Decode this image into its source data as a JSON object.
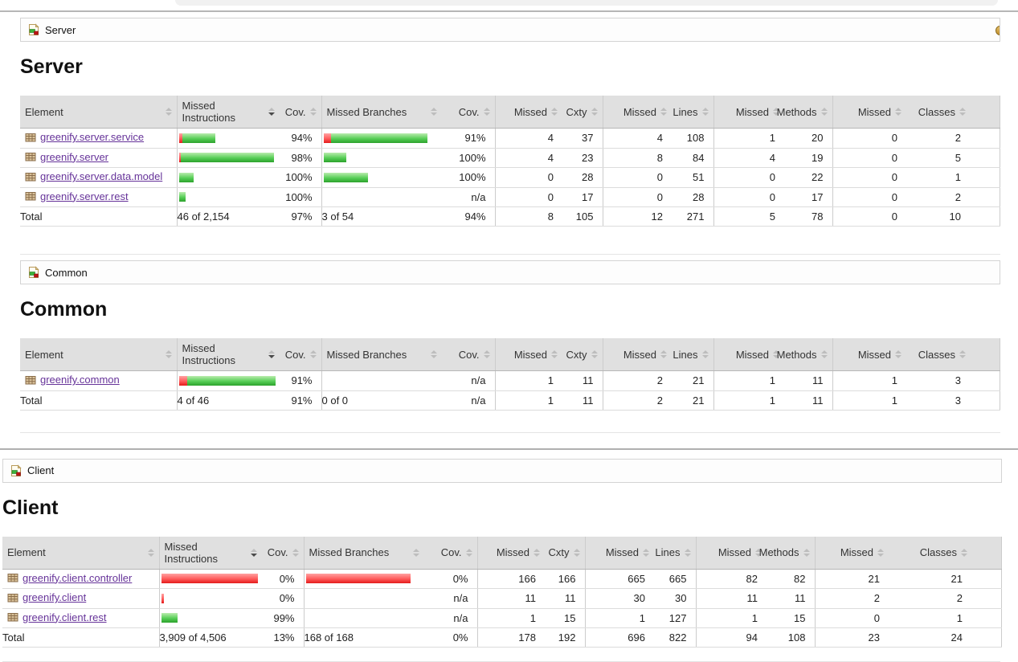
{
  "icons": {
    "crumb_icon": "coverage-group-icon",
    "package_icon": "java-package-icon",
    "session_icon": "session-coin-icon",
    "sort_icon": "sort-arrows-icon"
  },
  "colors": {
    "link": "#663399",
    "bar_red": "#e31b1b",
    "bar_green": "#2ca22c",
    "header_bg": "#e0e0e0"
  },
  "sections": [
    {
      "id": "server",
      "crumb_label": "Server",
      "heading": "Server",
      "sorted_col_index": 1,
      "headers": [
        "Element",
        "Missed Instructions",
        "Cov.",
        "Missed Branches",
        "Cov.",
        "Missed",
        "Cxty",
        "Missed",
        "Lines",
        "Missed",
        "Methods",
        "Missed",
        "Classes"
      ],
      "rows": [
        {
          "name": "greenify.server.service",
          "instr_bar": {
            "red": 4,
            "green": 41
          },
          "instr_cov": "94%",
          "branch_bar": {
            "red": 9,
            "green": 120
          },
          "branch_cov": "91%",
          "nums": [
            "4",
            "37",
            "4",
            "108",
            "1",
            "20",
            "0",
            "2"
          ]
        },
        {
          "name": "greenify.server",
          "instr_bar": {
            "red": 2,
            "green": 116
          },
          "instr_cov": "98%",
          "branch_bar": {
            "red": 0,
            "green": 28
          },
          "branch_cov": "100%",
          "nums": [
            "4",
            "23",
            "8",
            "84",
            "4",
            "19",
            "0",
            "5"
          ]
        },
        {
          "name": "greenify.server.data.model",
          "instr_bar": {
            "red": 0,
            "green": 18
          },
          "instr_cov": "100%",
          "branch_bar": {
            "red": 0,
            "green": 55
          },
          "branch_cov": "100%",
          "nums": [
            "0",
            "28",
            "0",
            "51",
            "0",
            "22",
            "0",
            "1"
          ]
        },
        {
          "name": "greenify.server.rest",
          "instr_bar": {
            "red": 0,
            "green": 8
          },
          "instr_cov": "100%",
          "branch_bar": {
            "red": 0,
            "green": 0
          },
          "branch_cov": "n/a",
          "nums": [
            "0",
            "17",
            "0",
            "28",
            "0",
            "17",
            "0",
            "2"
          ]
        }
      ],
      "total": {
        "label": "Total",
        "instr_text": "46 of 2,154",
        "instr_cov": "97%",
        "branch_text": "3 of 54",
        "branch_cov": "94%",
        "nums": [
          "8",
          "105",
          "12",
          "271",
          "5",
          "78",
          "0",
          "10"
        ]
      }
    },
    {
      "id": "common",
      "crumb_label": "Common",
      "heading": "Common",
      "sorted_col_index": 1,
      "headers": [
        "Element",
        "Missed Instructions",
        "Cov.",
        "Missed Branches",
        "Cov.",
        "Missed",
        "Cxty",
        "Missed",
        "Lines",
        "Missed",
        "Methods",
        "Missed",
        "Classes"
      ],
      "rows": [
        {
          "name": "greenify.common",
          "instr_bar": {
            "red": 10,
            "green": 110
          },
          "instr_cov": "91%",
          "branch_bar": {
            "red": 0,
            "green": 0
          },
          "branch_cov": "n/a",
          "nums": [
            "1",
            "11",
            "2",
            "21",
            "1",
            "11",
            "1",
            "3"
          ]
        }
      ],
      "total": {
        "label": "Total",
        "instr_text": "4 of 46",
        "instr_cov": "91%",
        "branch_text": "0 of 0",
        "branch_cov": "n/a",
        "nums": [
          "1",
          "11",
          "2",
          "21",
          "1",
          "11",
          "1",
          "3"
        ]
      }
    },
    {
      "id": "client",
      "crumb_label": "Client",
      "heading": "Client",
      "sorted_col_index": 1,
      "headers": [
        "Element",
        "Missed Instructions",
        "Cov.",
        "Missed Branches",
        "Cov.",
        "Missed",
        "Cxty",
        "Missed",
        "Lines",
        "Missed",
        "Methods",
        "Missed",
        "Classes"
      ],
      "rows": [
        {
          "name": "greenify.client.controller",
          "instr_bar": {
            "red": 120,
            "green": 0
          },
          "instr_cov": "0%",
          "branch_bar": {
            "red": 130,
            "green": 0
          },
          "branch_cov": "0%",
          "nums": [
            "166",
            "166",
            "665",
            "665",
            "82",
            "82",
            "21",
            "21"
          ]
        },
        {
          "name": "greenify.client",
          "instr_bar": {
            "red": 3,
            "green": 0
          },
          "instr_cov": "0%",
          "branch_bar": {
            "red": 0,
            "green": 0
          },
          "branch_cov": "n/a",
          "nums": [
            "11",
            "11",
            "30",
            "30",
            "11",
            "11",
            "2",
            "2"
          ]
        },
        {
          "name": "greenify.client.rest",
          "instr_bar": {
            "red": 0,
            "green": 20
          },
          "instr_cov": "99%",
          "branch_bar": {
            "red": 0,
            "green": 0
          },
          "branch_cov": "n/a",
          "nums": [
            "1",
            "15",
            "1",
            "127",
            "1",
            "15",
            "0",
            "1"
          ]
        }
      ],
      "total": {
        "label": "Total",
        "instr_text": "3,909 of 4,506",
        "instr_cov": "13%",
        "branch_text": "168 of 168",
        "branch_cov": "0%",
        "nums": [
          "178",
          "192",
          "696",
          "822",
          "94",
          "108",
          "23",
          "24"
        ]
      }
    }
  ]
}
